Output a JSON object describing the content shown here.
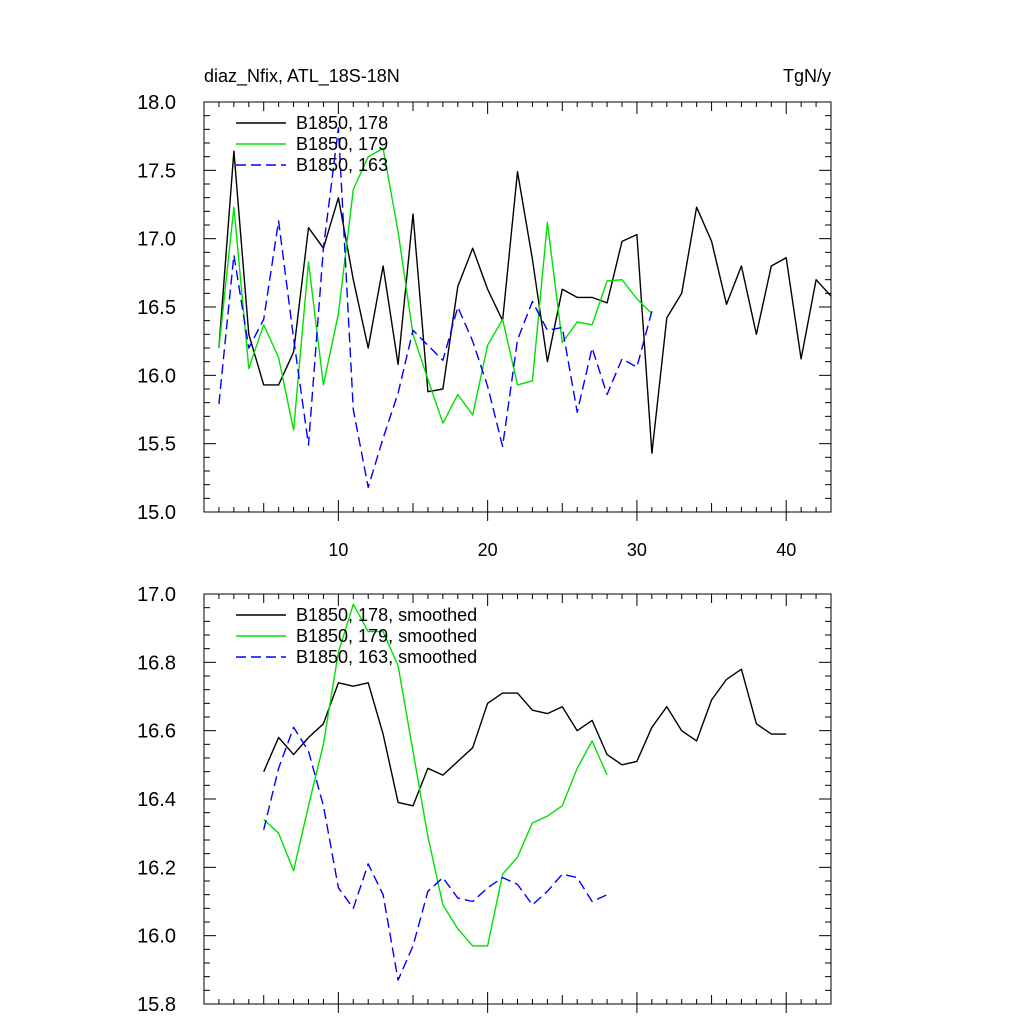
{
  "chart_data": [
    {
      "type": "line",
      "title_left": "diaz_Nfix, ATL_18S-18N",
      "title_right": "TgN/y",
      "xlim": [
        1,
        43
      ],
      "ylim": [
        15.0,
        18.0
      ],
      "xticks": [
        10,
        20,
        30,
        40
      ],
      "xtick_labels": [
        "10",
        "20",
        "30",
        "40"
      ],
      "yticks": [
        15.0,
        15.5,
        16.0,
        16.5,
        17.0,
        17.5,
        18.0
      ],
      "ytick_labels": [
        "15.0",
        "15.5",
        "16.0",
        "16.5",
        "17.0",
        "17.5",
        "18.0"
      ],
      "legend_position": "top-left",
      "series": [
        {
          "name": "B1850, 178",
          "color": "#000000",
          "dash": "solid",
          "x": [
            2,
            3,
            4,
            5,
            6,
            7,
            8,
            9,
            10,
            11,
            12,
            13,
            14,
            15,
            16,
            17,
            18,
            19,
            20,
            21,
            22,
            23,
            24,
            25,
            26,
            27,
            28,
            29,
            30,
            31,
            32,
            33,
            34,
            35,
            36,
            37,
            38,
            39,
            40,
            41,
            42,
            43
          ],
          "values": [
            16.2,
            17.64,
            16.3,
            15.93,
            15.93,
            16.17,
            17.08,
            16.93,
            17.3,
            16.7,
            16.2,
            16.8,
            16.08,
            17.18,
            15.88,
            15.9,
            16.65,
            16.93,
            16.63,
            16.4,
            17.49,
            16.85,
            16.1,
            16.63,
            16.57,
            16.57,
            16.53,
            16.98,
            17.03,
            15.43,
            16.42,
            16.6,
            17.23,
            16.98,
            16.52,
            16.8,
            16.3,
            16.8,
            16.86,
            16.12,
            16.7,
            16.58
          ]
        },
        {
          "name": "B1850, 179",
          "color": "#00e000",
          "dash": "solid",
          "x": [
            2,
            3,
            4,
            5,
            6,
            7,
            8,
            9,
            10,
            11,
            12,
            13,
            14,
            15,
            16,
            17,
            18,
            19,
            20,
            21,
            22,
            23,
            24,
            25,
            26,
            27,
            28,
            29,
            30,
            31
          ],
          "values": [
            16.2,
            17.23,
            16.05,
            16.37,
            16.13,
            15.6,
            16.83,
            15.93,
            16.45,
            17.36,
            17.6,
            17.66,
            17.05,
            16.3,
            15.97,
            15.65,
            15.86,
            15.71,
            16.22,
            16.41,
            15.93,
            15.96,
            17.12,
            16.24,
            16.39,
            16.37,
            16.69,
            16.7,
            16.56,
            16.45
          ]
        },
        {
          "name": "B1850, 163",
          "color": "#0000ff",
          "dash": "dashed",
          "x": [
            2,
            3,
            4,
            5,
            6,
            7,
            8,
            9,
            10,
            11,
            12,
            13,
            14,
            15,
            16,
            17,
            18,
            19,
            20,
            21,
            22,
            23,
            24,
            25,
            26,
            27,
            28,
            29,
            30,
            31
          ],
          "values": [
            15.79,
            16.88,
            16.2,
            16.41,
            17.13,
            16.27,
            15.49,
            16.93,
            17.81,
            15.75,
            15.18,
            15.54,
            15.87,
            16.33,
            16.22,
            16.11,
            16.5,
            16.25,
            15.92,
            15.48,
            16.26,
            16.54,
            16.33,
            16.35,
            15.73,
            16.2,
            15.86,
            16.12,
            16.06,
            16.47
          ]
        }
      ]
    },
    {
      "type": "line",
      "xlim": [
        1,
        43
      ],
      "ylim": [
        15.8,
        17.0
      ],
      "xticks": [
        10,
        20,
        30,
        40
      ],
      "yticks": [
        15.8,
        16.0,
        16.2,
        16.4,
        16.6,
        16.8,
        17.0
      ],
      "ytick_labels": [
        "15.8",
        "16.0",
        "16.2",
        "16.4",
        "16.6",
        "16.8",
        "17.0"
      ],
      "legend_position": "top-left",
      "series": [
        {
          "name": "B1850, 178, smoothed",
          "color": "#000000",
          "dash": "solid",
          "x": [
            5,
            6,
            7,
            8,
            9,
            10,
            11,
            12,
            13,
            14,
            15,
            16,
            17,
            18,
            19,
            20,
            21,
            22,
            23,
            24,
            25,
            26,
            27,
            28,
            29,
            30,
            31,
            32,
            33,
            34,
            35,
            36,
            37,
            38,
            39,
            40
          ],
          "values": [
            16.48,
            16.58,
            16.53,
            16.58,
            16.62,
            16.74,
            16.73,
            16.74,
            16.59,
            16.39,
            16.38,
            16.49,
            16.47,
            16.51,
            16.55,
            16.68,
            16.71,
            16.71,
            16.66,
            16.65,
            16.67,
            16.6,
            16.63,
            16.53,
            16.5,
            16.51,
            16.61,
            16.67,
            16.6,
            16.57,
            16.69,
            16.75,
            16.78,
            16.62,
            16.59,
            16.59
          ]
        },
        {
          "name": "B1850, 179, smoothed",
          "color": "#00e000",
          "dash": "solid",
          "x": [
            5,
            6,
            7,
            8,
            9,
            10,
            11,
            12,
            13,
            14,
            15,
            16,
            17,
            18,
            19,
            20,
            21,
            22,
            23,
            24,
            25,
            26,
            27,
            28
          ],
          "values": [
            16.34,
            16.3,
            16.19,
            16.38,
            16.56,
            16.83,
            16.97,
            16.89,
            16.89,
            16.79,
            16.54,
            16.29,
            16.09,
            16.02,
            15.97,
            15.97,
            16.18,
            16.23,
            16.33,
            16.35,
            16.38,
            16.49,
            16.57,
            16.47
          ]
        },
        {
          "name": "B1850, 163, smoothed",
          "color": "#0000ff",
          "dash": "dashed",
          "x": [
            5,
            6,
            7,
            8,
            9,
            10,
            11,
            12,
            13,
            14,
            15,
            16,
            17,
            18,
            19,
            20,
            21,
            22,
            23,
            24,
            25,
            26,
            27,
            28
          ],
          "values": [
            16.31,
            16.49,
            16.61,
            16.54,
            16.38,
            16.14,
            16.08,
            16.21,
            16.12,
            15.87,
            15.97,
            16.13,
            16.17,
            16.11,
            16.1,
            16.14,
            16.17,
            16.15,
            16.09,
            16.13,
            16.18,
            16.17,
            16.1,
            16.12
          ]
        }
      ]
    }
  ]
}
